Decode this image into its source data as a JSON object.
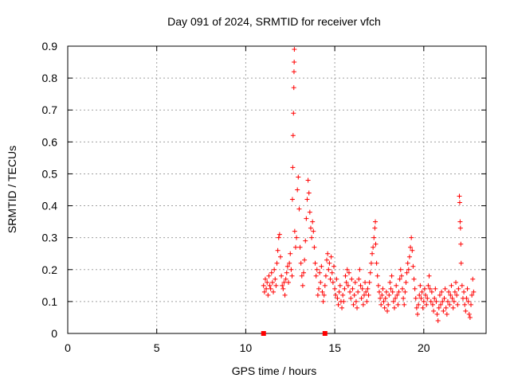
{
  "chart_data": {
    "type": "scatter",
    "title": "Day 091 of 2024, SRMTID for receiver vfch",
    "xlabel": "GPS time / hours",
    "ylabel": "SRMTID / TECUs",
    "xlim": [
      0,
      23.5
    ],
    "ylim": [
      0,
      0.9
    ],
    "x_ticks": [
      0,
      5,
      10,
      15,
      20
    ],
    "x_tick_labels": [
      "0",
      "5",
      "10",
      "15",
      "20"
    ],
    "y_ticks": [
      0,
      0.1,
      0.2,
      0.3,
      0.4,
      0.5,
      0.6,
      0.7,
      0.8,
      0.9
    ],
    "y_tick_labels": [
      "0",
      "0.1",
      "0.2",
      "0.3",
      "0.4",
      "0.5",
      "0.6",
      "0.7",
      "0.8",
      "0.9"
    ],
    "grid": true,
    "marker": "+",
    "series": [
      {
        "name": "SRMTID",
        "color": "#ff0000",
        "points": [
          [
            11.0,
            0.15
          ],
          [
            11.05,
            0.13
          ],
          [
            11.1,
            0.17
          ],
          [
            11.15,
            0.14
          ],
          [
            11.2,
            0.16
          ],
          [
            11.25,
            0.12
          ],
          [
            11.3,
            0.18
          ],
          [
            11.35,
            0.15
          ],
          [
            11.4,
            0.14
          ],
          [
            11.45,
            0.19
          ],
          [
            11.5,
            0.16
          ],
          [
            11.55,
            0.13
          ],
          [
            11.6,
            0.2
          ],
          [
            11.65,
            0.17
          ],
          [
            11.7,
            0.15
          ],
          [
            11.75,
            0.22
          ],
          [
            11.8,
            0.26
          ],
          [
            11.85,
            0.3
          ],
          [
            11.9,
            0.31
          ],
          [
            11.95,
            0.24
          ],
          [
            12.0,
            0.18
          ],
          [
            12.05,
            0.15
          ],
          [
            12.1,
            0.14
          ],
          [
            12.15,
            0.16
          ],
          [
            12.2,
            0.12
          ],
          [
            12.25,
            0.17
          ],
          [
            12.3,
            0.19
          ],
          [
            12.35,
            0.21
          ],
          [
            12.4,
            0.16
          ],
          [
            12.45,
            0.22
          ],
          [
            12.5,
            0.25
          ],
          [
            12.55,
            0.2
          ],
          [
            12.6,
            0.18
          ],
          [
            12.62,
            0.42
          ],
          [
            12.64,
            0.52
          ],
          [
            12.66,
            0.62
          ],
          [
            12.68,
            0.69
          ],
          [
            12.7,
            0.77
          ],
          [
            12.71,
            0.82
          ],
          [
            12.72,
            0.85
          ],
          [
            12.73,
            0.89
          ],
          [
            12.75,
            0.32
          ],
          [
            12.8,
            0.27
          ],
          [
            12.85,
            0.3
          ],
          [
            12.9,
            0.45
          ],
          [
            12.95,
            0.49
          ],
          [
            13.0,
            0.39
          ],
          [
            13.05,
            0.27
          ],
          [
            13.1,
            0.22
          ],
          [
            13.15,
            0.18
          ],
          [
            13.2,
            0.15
          ],
          [
            13.25,
            0.19
          ],
          [
            13.3,
            0.23
          ],
          [
            13.35,
            0.29
          ],
          [
            13.4,
            0.36
          ],
          [
            13.45,
            0.42
          ],
          [
            13.5,
            0.48
          ],
          [
            13.55,
            0.44
          ],
          [
            13.6,
            0.38
          ],
          [
            13.65,
            0.33
          ],
          [
            13.7,
            0.3
          ],
          [
            13.75,
            0.35
          ],
          [
            13.8,
            0.32
          ],
          [
            13.85,
            0.27
          ],
          [
            13.9,
            0.22
          ],
          [
            13.95,
            0.18
          ],
          [
            14.0,
            0.2
          ],
          [
            14.05,
            0.12
          ],
          [
            14.1,
            0.14
          ],
          [
            14.15,
            0.19
          ],
          [
            14.2,
            0.16
          ],
          [
            14.25,
            0.21
          ],
          [
            14.3,
            0.13
          ],
          [
            14.35,
            0.1
          ],
          [
            14.4,
            0.12
          ],
          [
            14.45,
            0.15
          ],
          [
            14.5,
            0.18
          ],
          [
            14.55,
            0.23
          ],
          [
            14.6,
            0.25
          ],
          [
            14.65,
            0.2
          ],
          [
            14.7,
            0.22
          ],
          [
            14.75,
            0.17
          ],
          [
            14.8,
            0.24
          ],
          [
            14.85,
            0.19
          ],
          [
            14.9,
            0.16
          ],
          [
            14.95,
            0.21
          ],
          [
            15.0,
            0.14
          ],
          [
            15.05,
            0.12
          ],
          [
            15.1,
            0.17
          ],
          [
            15.15,
            0.11
          ],
          [
            15.2,
            0.09
          ],
          [
            15.25,
            0.13
          ],
          [
            15.3,
            0.15
          ],
          [
            15.35,
            0.1
          ],
          [
            15.4,
            0.08
          ],
          [
            15.45,
            0.12
          ],
          [
            15.5,
            0.1
          ],
          [
            15.55,
            0.14
          ],
          [
            15.6,
            0.18
          ],
          [
            15.65,
            0.16
          ],
          [
            15.7,
            0.2
          ],
          [
            15.75,
            0.15
          ],
          [
            15.8,
            0.19
          ],
          [
            15.85,
            0.13
          ],
          [
            15.9,
            0.11
          ],
          [
            15.95,
            0.17
          ],
          [
            16.0,
            0.14
          ],
          [
            16.05,
            0.09
          ],
          [
            16.1,
            0.12
          ],
          [
            16.15,
            0.16
          ],
          [
            16.2,
            0.1
          ],
          [
            16.25,
            0.08
          ],
          [
            16.3,
            0.13
          ],
          [
            16.35,
            0.17
          ],
          [
            16.4,
            0.2
          ],
          [
            16.45,
            0.15
          ],
          [
            16.5,
            0.11
          ],
          [
            16.55,
            0.14
          ],
          [
            16.6,
            0.09
          ],
          [
            16.65,
            0.12
          ],
          [
            16.7,
            0.16
          ],
          [
            16.75,
            0.13
          ],
          [
            16.8,
            0.1
          ],
          [
            16.85,
            0.14
          ],
          [
            16.9,
            0.12
          ],
          [
            16.95,
            0.16
          ],
          [
            17.0,
            0.19
          ],
          [
            17.05,
            0.22
          ],
          [
            17.1,
            0.25
          ],
          [
            17.15,
            0.27
          ],
          [
            17.2,
            0.3
          ],
          [
            17.25,
            0.33
          ],
          [
            17.28,
            0.35
          ],
          [
            17.3,
            0.28
          ],
          [
            17.35,
            0.22
          ],
          [
            17.4,
            0.18
          ],
          [
            17.45,
            0.15
          ],
          [
            17.5,
            0.13
          ],
          [
            17.55,
            0.11
          ],
          [
            17.6,
            0.09
          ],
          [
            17.65,
            0.12
          ],
          [
            17.7,
            0.14
          ],
          [
            17.75,
            0.1
          ],
          [
            17.8,
            0.08
          ],
          [
            17.85,
            0.11
          ],
          [
            17.9,
            0.13
          ],
          [
            17.95,
            0.07
          ],
          [
            18.0,
            0.09
          ],
          [
            18.05,
            0.12
          ],
          [
            18.1,
            0.16
          ],
          [
            18.15,
            0.14
          ],
          [
            18.2,
            0.18
          ],
          [
            18.25,
            0.13
          ],
          [
            18.3,
            0.1
          ],
          [
            18.35,
            0.08
          ],
          [
            18.4,
            0.11
          ],
          [
            18.45,
            0.15
          ],
          [
            18.5,
            0.12
          ],
          [
            18.55,
            0.09
          ],
          [
            18.6,
            0.13
          ],
          [
            18.65,
            0.17
          ],
          [
            18.7,
            0.2
          ],
          [
            18.75,
            0.18
          ],
          [
            18.8,
            0.14
          ],
          [
            18.85,
            0.11
          ],
          [
            18.9,
            0.09
          ],
          [
            18.95,
            0.13
          ],
          [
            19.0,
            0.16
          ],
          [
            19.05,
            0.19
          ],
          [
            19.1,
            0.22
          ],
          [
            19.15,
            0.2
          ],
          [
            19.2,
            0.24
          ],
          [
            19.25,
            0.27
          ],
          [
            19.3,
            0.3
          ],
          [
            19.35,
            0.26
          ],
          [
            19.4,
            0.21
          ],
          [
            19.45,
            0.17
          ],
          [
            19.5,
            0.14
          ],
          [
            19.55,
            0.11
          ],
          [
            19.6,
            0.08
          ],
          [
            19.65,
            0.06
          ],
          [
            19.7,
            0.09
          ],
          [
            19.75,
            0.12
          ],
          [
            19.8,
            0.15
          ],
          [
            19.85,
            0.11
          ],
          [
            19.9,
            0.13
          ],
          [
            19.95,
            0.08
          ],
          [
            20.0,
            0.1
          ],
          [
            20.05,
            0.14
          ],
          [
            20.1,
            0.12
          ],
          [
            20.15,
            0.09
          ],
          [
            20.2,
            0.11
          ],
          [
            20.25,
            0.15
          ],
          [
            20.3,
            0.18
          ],
          [
            20.35,
            0.14
          ],
          [
            20.4,
            0.1
          ],
          [
            20.45,
            0.13
          ],
          [
            20.5,
            0.09
          ],
          [
            20.55,
            0.07
          ],
          [
            20.6,
            0.11
          ],
          [
            20.65,
            0.14
          ],
          [
            20.7,
            0.1
          ],
          [
            20.75,
            0.06
          ],
          [
            20.8,
            0.04
          ],
          [
            20.85,
            0.08
          ],
          [
            20.9,
            0.12
          ],
          [
            20.95,
            0.09
          ],
          [
            21.0,
            0.13
          ],
          [
            21.05,
            0.1
          ],
          [
            21.1,
            0.07
          ],
          [
            21.15,
            0.11
          ],
          [
            21.2,
            0.14
          ],
          [
            21.25,
            0.08
          ],
          [
            21.3,
            0.06
          ],
          [
            21.35,
            0.1
          ],
          [
            21.4,
            0.13
          ],
          [
            21.45,
            0.09
          ],
          [
            21.5,
            0.12
          ],
          [
            21.55,
            0.15
          ],
          [
            21.6,
            0.11
          ],
          [
            21.65,
            0.08
          ],
          [
            21.7,
            0.1
          ],
          [
            21.75,
            0.13
          ],
          [
            21.8,
            0.16
          ],
          [
            21.85,
            0.12
          ],
          [
            21.9,
            0.09
          ],
          [
            21.95,
            0.14
          ],
          [
            22.0,
            0.43
          ],
          [
            22.02,
            0.41
          ],
          [
            22.04,
            0.35
          ],
          [
            22.06,
            0.33
          ],
          [
            22.08,
            0.28
          ],
          [
            22.1,
            0.22
          ],
          [
            22.15,
            0.15
          ],
          [
            22.2,
            0.11
          ],
          [
            22.25,
            0.13
          ],
          [
            22.3,
            0.09
          ],
          [
            22.35,
            0.07
          ],
          [
            22.4,
            0.11
          ],
          [
            22.45,
            0.14
          ],
          [
            22.5,
            0.1
          ],
          [
            22.55,
            0.06
          ],
          [
            22.6,
            0.05
          ],
          [
            22.65,
            0.09
          ],
          [
            22.7,
            0.12
          ],
          [
            22.75,
            0.17
          ],
          [
            22.8,
            0.13
          ]
        ]
      }
    ],
    "special_marks": [
      [
        11.0,
        0.0
      ],
      [
        14.45,
        0.0
      ]
    ]
  }
}
